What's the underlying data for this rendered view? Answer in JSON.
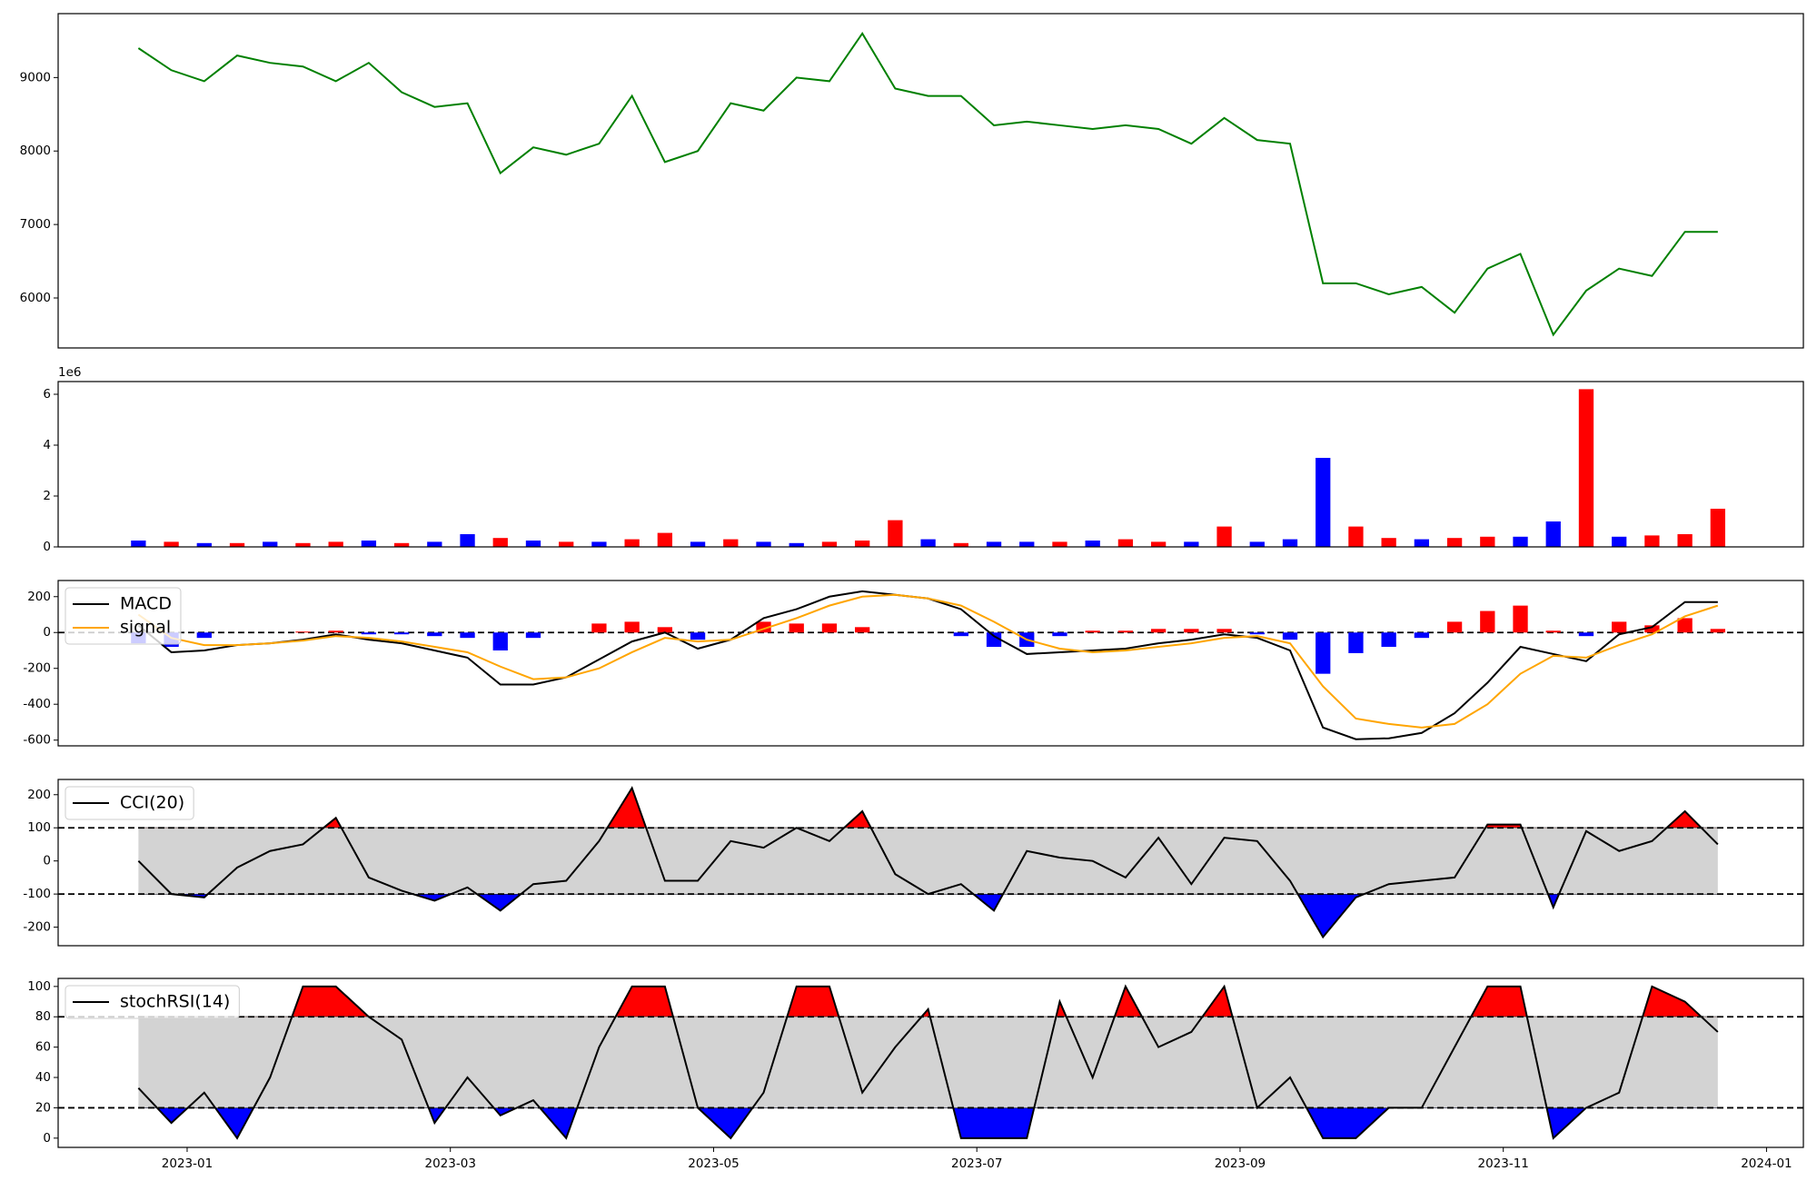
{
  "chart_data": [
    {
      "type": "line",
      "x": [
        -0.37,
        -0.12,
        0.13,
        0.38,
        0.63,
        0.88,
        1.13,
        1.38,
        1.63,
        1.88,
        2.13,
        2.38,
        2.63,
        2.88,
        3.13,
        3.38,
        3.63,
        3.88,
        4.13,
        4.38,
        4.63,
        4.88,
        5.13,
        5.38,
        5.63,
        5.88,
        6.13,
        6.38,
        6.63,
        6.88,
        7.13,
        7.38,
        7.63,
        7.88,
        8.13,
        8.38,
        8.63,
        8.88,
        9.13,
        9.38,
        9.63,
        9.88,
        10.13,
        10.38,
        10.63,
        10.88,
        11.13,
        11.38,
        11.63
      ],
      "xlim": [
        -0.98,
        12.28
      ],
      "ylim": [
        5320,
        9870
      ],
      "yticks": [
        6000,
        7000,
        8000,
        9000
      ],
      "series": [
        {
          "color": "green",
          "values": [
            9400,
            9100,
            8950,
            9300,
            9200,
            9150,
            8950,
            9200,
            8800,
            8600,
            8650,
            7700,
            8050,
            7950,
            8100,
            8750,
            7850,
            8000,
            8650,
            8550,
            9000,
            8950,
            9600,
            8850,
            8750,
            8750,
            8350,
            8400,
            8350,
            8300,
            8350,
            8300,
            8100,
            8450,
            8150,
            8100,
            6200,
            6200,
            6050,
            6150,
            5800,
            6400,
            6600,
            5500,
            6100,
            6400,
            6300,
            6900,
            6900
          ]
        }
      ]
    },
    {
      "type": "bar",
      "offset_text": "1e6",
      "x": [
        -0.37,
        -0.12,
        0.13,
        0.38,
        0.63,
        0.88,
        1.13,
        1.38,
        1.63,
        1.88,
        2.13,
        2.38,
        2.63,
        2.88,
        3.13,
        3.38,
        3.63,
        3.88,
        4.13,
        4.38,
        4.63,
        4.88,
        5.13,
        5.38,
        5.63,
        5.88,
        6.13,
        6.38,
        6.63,
        6.88,
        7.13,
        7.38,
        7.63,
        7.88,
        8.13,
        8.38,
        8.63,
        8.88,
        9.13,
        9.38,
        9.63,
        9.88,
        10.13,
        10.38,
        10.63,
        10.88,
        11.13,
        11.38,
        11.63
      ],
      "xlim": [
        -0.98,
        12.28
      ],
      "ylim": [
        0,
        6.5
      ],
      "yticks": [
        0,
        2,
        4,
        6
      ],
      "series": [
        {
          "colors": [
            "blue",
            "red",
            "blue",
            "red",
            "blue",
            "red",
            "red",
            "blue",
            "red",
            "blue",
            "blue",
            "red",
            "blue",
            "red",
            "blue",
            "red",
            "red",
            "blue",
            "red",
            "blue",
            "blue",
            "red",
            "red",
            "red",
            "blue",
            "red",
            "blue",
            "blue",
            "red",
            "blue",
            "red",
            "red",
            "blue",
            "red",
            "blue",
            "blue",
            "blue",
            "red",
            "red",
            "blue",
            "red",
            "red",
            "blue",
            "blue",
            "red",
            "blue",
            "red",
            "red",
            "red"
          ],
          "values": [
            0.25,
            0.2,
            0.15,
            0.15,
            0.2,
            0.15,
            0.2,
            0.25,
            0.15,
            0.2,
            0.5,
            0.35,
            0.25,
            0.2,
            0.2,
            0.3,
            0.55,
            0.2,
            0.3,
            0.2,
            0.15,
            0.2,
            0.25,
            1.05,
            0.3,
            0.15,
            0.2,
            0.2,
            0.2,
            0.25,
            0.3,
            0.2,
            0.2,
            0.8,
            0.2,
            0.3,
            3.5,
            0.8,
            0.35,
            0.3,
            0.35,
            0.4,
            0.4,
            1.0,
            6.2,
            0.4,
            0.45,
            0.5,
            1.5
          ]
        }
      ]
    },
    {
      "type": "macd",
      "legend": "upper left",
      "x": [
        -0.37,
        -0.12,
        0.13,
        0.38,
        0.63,
        0.88,
        1.13,
        1.38,
        1.63,
        1.88,
        2.13,
        2.38,
        2.63,
        2.88,
        3.13,
        3.38,
        3.63,
        3.88,
        4.13,
        4.38,
        4.63,
        4.88,
        5.13,
        5.38,
        5.63,
        5.88,
        6.13,
        6.38,
        6.63,
        6.88,
        7.13,
        7.38,
        7.63,
        7.88,
        8.13,
        8.38,
        8.63,
        8.88,
        9.13,
        9.38,
        9.63,
        9.88,
        10.13,
        10.38,
        10.63,
        10.88,
        11.13,
        11.38,
        11.63
      ],
      "xlim": [
        -0.98,
        12.28
      ],
      "ylim": [
        -632,
        290
      ],
      "yticks": [
        -600,
        -400,
        -200,
        0,
        200
      ],
      "hlines": [
        0
      ],
      "series": [
        {
          "kind": "bar",
          "positive_color": "red",
          "negative_color": "blue",
          "values": [
            -60,
            -80,
            -30,
            0,
            0,
            5,
            10,
            -10,
            -10,
            -20,
            -30,
            -100,
            -30,
            0,
            50,
            60,
            30,
            -40,
            0,
            60,
            50,
            50,
            30,
            0,
            0,
            -20,
            -80,
            -80,
            -20,
            10,
            10,
            20,
            20,
            20,
            -10,
            -40,
            -230,
            -115,
            -80,
            -30,
            60,
            120,
            150,
            10,
            -20,
            60,
            40,
            80,
            20
          ]
        },
        {
          "name": "MACD",
          "color": "black",
          "values": [
            40,
            -110,
            -100,
            -70,
            -60,
            -40,
            -10,
            -40,
            -60,
            -100,
            -140,
            -290,
            -290,
            -250,
            -150,
            -50,
            0,
            -90,
            -40,
            80,
            130,
            200,
            230,
            210,
            190,
            130,
            -20,
            -120,
            -110,
            -100,
            -90,
            -60,
            -40,
            -10,
            -30,
            -100,
            -530,
            -595,
            -590,
            -560,
            -450,
            -280,
            -80,
            -120,
            -160,
            -10,
            30,
            170,
            170
          ]
        },
        {
          "name": "signal",
          "color": "orange",
          "values": [
            100,
            -30,
            -70,
            -70,
            -60,
            -45,
            -20,
            -30,
            -50,
            -80,
            -110,
            -190,
            -260,
            -250,
            -200,
            -110,
            -30,
            -50,
            -40,
            20,
            80,
            150,
            200,
            210,
            190,
            150,
            60,
            -40,
            -90,
            -110,
            -100,
            -80,
            -60,
            -30,
            -20,
            -60,
            -300,
            -480,
            -510,
            -530,
            -510,
            -400,
            -230,
            -130,
            -140,
            -70,
            -10,
            90,
            150
          ]
        }
      ]
    },
    {
      "type": "band",
      "legend": "upper left",
      "band_color": "lightgray",
      "above_color": "red",
      "below_color": "blue",
      "x": [
        -0.37,
        -0.12,
        0.13,
        0.38,
        0.63,
        0.88,
        1.13,
        1.38,
        1.63,
        1.88,
        2.13,
        2.38,
        2.63,
        2.88,
        3.13,
        3.38,
        3.63,
        3.88,
        4.13,
        4.38,
        4.63,
        4.88,
        5.13,
        5.38,
        5.63,
        5.88,
        6.13,
        6.38,
        6.63,
        6.88,
        7.13,
        7.38,
        7.63,
        7.88,
        8.13,
        8.38,
        8.63,
        8.88,
        9.13,
        9.38,
        9.63,
        9.88,
        10.13,
        10.38,
        10.63,
        10.88,
        11.13,
        11.38,
        11.63
      ],
      "xlim": [
        -0.98,
        12.28
      ],
      "ylim": [
        -256,
        246
      ],
      "yticks": [
        -200,
        -100,
        0,
        100,
        200
      ],
      "hlines": [
        -100,
        100
      ],
      "series": [
        {
          "name": "CCI(20)",
          "color": "black",
          "values": [
            0,
            -100,
            -110,
            -20,
            30,
            50,
            130,
            -50,
            -90,
            -120,
            -80,
            -150,
            -70,
            -60,
            60,
            220,
            -60,
            -60,
            60,
            40,
            100,
            60,
            150,
            -40,
            -100,
            -70,
            -150,
            30,
            10,
            0,
            -50,
            70,
            -70,
            70,
            60,
            -60,
            -230,
            -110,
            -70,
            -60,
            -50,
            110,
            110,
            -140,
            90,
            30,
            60,
            150,
            50
          ]
        }
      ]
    },
    {
      "type": "band",
      "legend": "upper left",
      "band_color": "lightgray",
      "above_color": "red",
      "below_color": "blue",
      "x": [
        -0.37,
        -0.12,
        0.13,
        0.38,
        0.63,
        0.88,
        1.13,
        1.38,
        1.63,
        1.88,
        2.13,
        2.38,
        2.63,
        2.88,
        3.13,
        3.38,
        3.63,
        3.88,
        4.13,
        4.38,
        4.63,
        4.88,
        5.13,
        5.38,
        5.63,
        5.88,
        6.13,
        6.38,
        6.63,
        6.88,
        7.13,
        7.38,
        7.63,
        7.88,
        8.13,
        8.38,
        8.63,
        8.88,
        9.13,
        9.38,
        9.63,
        9.88,
        10.13,
        10.38,
        10.63,
        10.88,
        11.13,
        11.38,
        11.63
      ],
      "xlim": [
        -0.98,
        12.28
      ],
      "ylim": [
        -6.1,
        105.3
      ],
      "yticks": [
        0,
        20,
        40,
        60,
        80,
        100
      ],
      "hlines": [
        20,
        80
      ],
      "xticks": [
        {
          "value": 0,
          "label": "2023-01"
        },
        {
          "value": 2,
          "label": "2023-03"
        },
        {
          "value": 4,
          "label": "2023-05"
        },
        {
          "value": 6,
          "label": "2023-07"
        },
        {
          "value": 8,
          "label": "2023-09"
        },
        {
          "value": 10,
          "label": "2023-11"
        },
        {
          "value": 12,
          "label": "2024-01"
        }
      ],
      "series": [
        {
          "name": "stochRSI(14)",
          "color": "black",
          "values": [
            33,
            10,
            30,
            0,
            40,
            100,
            100,
            80,
            65,
            10,
            40,
            15,
            25,
            0,
            60,
            100,
            100,
            20,
            0,
            30,
            100,
            100,
            30,
            60,
            85,
            0,
            0,
            0,
            90,
            40,
            100,
            60,
            70,
            100,
            20,
            40,
            0,
            0,
            20,
            20,
            60,
            100,
            100,
            0,
            20,
            30,
            100,
            90,
            70
          ]
        }
      ]
    }
  ]
}
